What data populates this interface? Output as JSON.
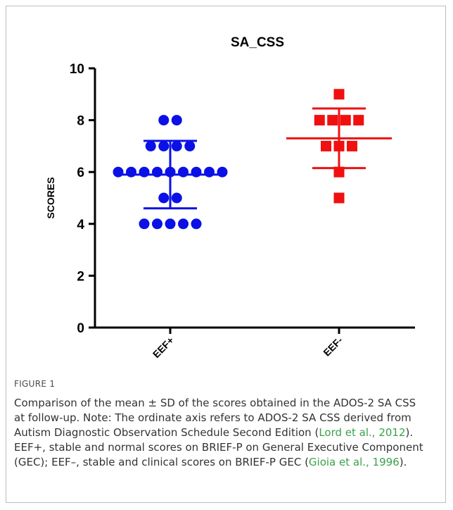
{
  "chart_data": {
    "type": "scatter",
    "title": "SA_CSS",
    "xlabel": "",
    "ylabel": "SCORES",
    "ylim": [
      0,
      10
    ],
    "yticks": [
      0,
      2,
      4,
      6,
      8,
      10
    ],
    "categories": [
      "EEF+",
      "EEF-"
    ],
    "grid": false,
    "series": [
      {
        "category": "EEF+",
        "marker": "circle",
        "color": "#0a10e6",
        "points": [
          {
            "y": 8,
            "count": 2
          },
          {
            "y": 7,
            "count": 4
          },
          {
            "y": 6,
            "count": 9
          },
          {
            "y": 5,
            "count": 2
          },
          {
            "y": 4,
            "count": 5
          }
        ],
        "mean": 5.9,
        "sd_low": 4.6,
        "sd_high": 7.2
      },
      {
        "category": "EEF-",
        "marker": "square",
        "color": "#f01010",
        "points": [
          {
            "y": 9,
            "count": 1
          },
          {
            "y": 8,
            "count": 4
          },
          {
            "y": 7,
            "count": 3
          },
          {
            "y": 6,
            "count": 1
          },
          {
            "y": 5,
            "count": 1
          }
        ],
        "mean": 7.3,
        "sd_low": 6.15,
        "sd_high": 8.45
      }
    ]
  },
  "caption": {
    "label": "FIGURE 1",
    "text_1": "Comparison of the mean ± SD of the scores obtained in the ADOS-2 SA CSS at follow-up. Note: The ordinate axis refers to ADOS-2 SA CSS derived from Autism Diagnostic Observation Schedule Second Edition (",
    "cite_1": "Lord et al., 2012",
    "text_2": "). EEF+, stable and normal scores on BRIEF-P on General Executive Component (GEC); EEF–, stable and clinical scores on BRIEF-P GEC (",
    "cite_2": "Gioia et al., 1996",
    "text_3": ")."
  }
}
